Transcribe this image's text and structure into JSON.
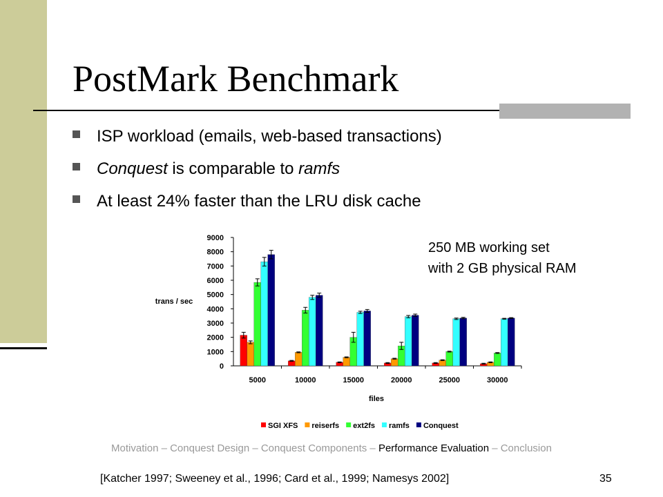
{
  "slide": {
    "title": "PostMark Benchmark",
    "bullets": [
      [
        "ISP workload (emails, web-based transactions)"
      ],
      [
        "Conquest",
        " is comparable to ",
        "ramfs"
      ],
      [
        "At least 24% faster than the LRU disk cache"
      ]
    ],
    "note": [
      "250 MB working set",
      "with 2 GB physical RAM"
    ],
    "nav": [
      "Motivation – Conquest Design – Conquest Components – ",
      "Performance Evaluation",
      " – Conclusion"
    ],
    "citation": "[Katcher 1997; Sweeney et al., 1996; Card et al., 1999; Namesys 2002]",
    "page_number": "35"
  },
  "chart_data": {
    "type": "bar",
    "ylabel": "trans / sec",
    "xlabel": "files",
    "categories": [
      "5000",
      "10000",
      "15000",
      "20000",
      "25000",
      "30000"
    ],
    "series": [
      {
        "name": "SGI XFS",
        "color": "#ff0000",
        "values": [
          2150,
          350,
          250,
          200,
          200,
          150
        ],
        "errors": [
          200,
          30,
          30,
          30,
          30,
          30
        ]
      },
      {
        "name": "reiserfs",
        "color": "#ff9900",
        "values": [
          1650,
          950,
          600,
          500,
          400,
          250
        ],
        "errors": [
          100,
          30,
          30,
          30,
          30,
          30
        ]
      },
      {
        "name": "ext2fs",
        "color": "#33ff33",
        "values": [
          5850,
          3900,
          2000,
          1400,
          1000,
          900
        ],
        "errors": [
          250,
          200,
          350,
          250,
          30,
          30
        ]
      },
      {
        "name": "ramfs",
        "color": "#33ffff",
        "values": [
          7300,
          4800,
          3750,
          3450,
          3300,
          3300
        ],
        "errors": [
          300,
          150,
          80,
          80,
          50,
          30
        ]
      },
      {
        "name": "Conquest",
        "color": "#000080",
        "values": [
          7800,
          4950,
          3850,
          3550,
          3350,
          3350
        ],
        "errors": [
          300,
          150,
          100,
          80,
          50,
          30
        ]
      }
    ],
    "ylim": [
      0,
      9000
    ],
    "yticks": [
      0,
      1000,
      2000,
      3000,
      4000,
      5000,
      6000,
      7000,
      8000,
      9000
    ]
  }
}
